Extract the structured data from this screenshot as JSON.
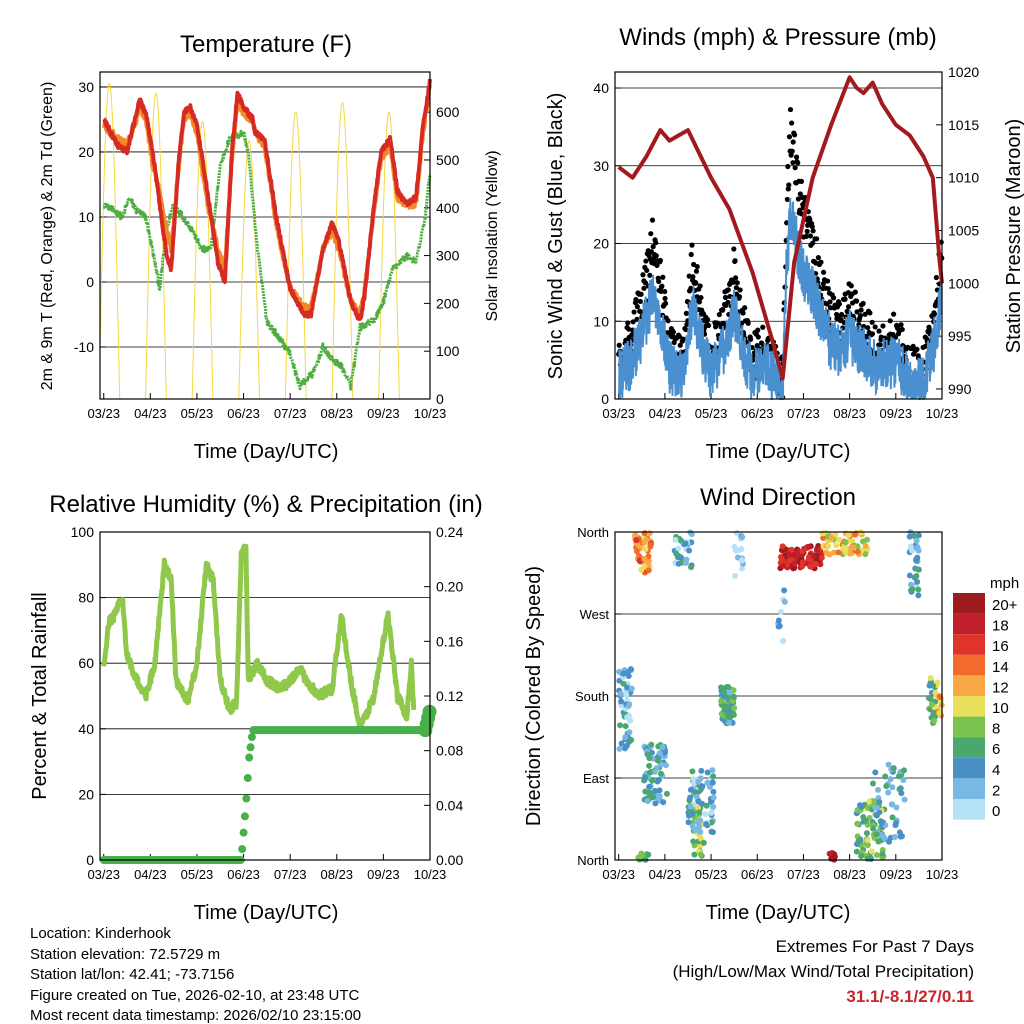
{
  "x_ticks": [
    "03/23",
    "04/23",
    "05/23",
    "06/23",
    "07/23",
    "08/23",
    "09/23",
    "10/23"
  ],
  "info": {
    "location": "Location: Kinderhook",
    "elevation": "Station elevation: 72.5729 m",
    "latlon": "Station lat/lon: 42.41; -73.7156",
    "created": "Figure created on Tue, 2026-02-10, at 23:48 UTC",
    "recent": "Most recent data timestamp: 2026/02/10 23:15:00"
  },
  "extremes": {
    "title": "Extremes For Past 7 Days",
    "subtitle": "(High/Low/Max Wind/Total Precipitation)",
    "values": "31.1/-8.1/27/0.11",
    "color": "#c8262c"
  },
  "chart_data": [
    {
      "type": "line",
      "title": "Temperature (F)",
      "xlabel": "Time (Day/UTC)",
      "ylabel": "2m & 9m T (Red, Orange) & 2m Td (Green)",
      "y2label": "Solar Insolation (Yellow)",
      "xlim": [
        -0.08,
        7.0
      ],
      "ylim": [
        -18,
        32.3
      ],
      "y2lim": [
        0,
        684
      ],
      "yticks": [
        "-10",
        "0",
        "10",
        "20",
        "30"
      ],
      "y2ticks": [
        "0",
        "100",
        "200",
        "300",
        "400",
        "500",
        "600"
      ],
      "series": [
        {
          "name": "2m T",
          "color": "#d62a24",
          "x": [
            0,
            0.3,
            0.5,
            0.7,
            0.77,
            0.9,
            1.05,
            1.2,
            1.35,
            1.45,
            1.6,
            1.72,
            1.85,
            2.0,
            2.2,
            2.45,
            2.6,
            2.75,
            2.87,
            3.0,
            3.2,
            3.25,
            3.45,
            3.7,
            4.0,
            4.3,
            4.45,
            4.7,
            4.9,
            5.05,
            5.3,
            5.5,
            5.6,
            5.8,
            5.95,
            6.15,
            6.3,
            6.5,
            6.7,
            6.85,
            7.0
          ],
          "y": [
            25,
            21,
            20,
            26,
            28,
            26,
            20,
            12,
            4,
            2,
            18,
            26,
            27,
            24,
            15,
            3,
            0,
            20,
            29,
            27,
            25,
            23,
            22,
            10,
            -1,
            -5,
            -5,
            5,
            9,
            6,
            -3,
            -6,
            -2,
            12,
            20,
            22,
            14,
            12,
            13,
            24,
            31
          ]
        },
        {
          "name": "9m T",
          "color": "#f28a2a",
          "x": [
            0,
            0.3,
            0.5,
            0.7,
            0.77,
            0.9,
            1.05,
            1.2,
            1.35,
            1.45,
            1.6,
            1.72,
            1.85,
            2.0,
            2.2,
            2.45,
            2.6,
            2.75,
            2.87,
            3.0,
            3.2,
            3.25,
            3.45,
            3.7,
            4.0,
            4.3,
            4.45,
            4.7,
            4.9,
            5.05,
            5.3,
            5.5,
            5.6,
            5.8,
            5.95,
            6.15,
            6.3,
            6.5,
            6.7,
            6.85,
            7.0
          ],
          "y": [
            24,
            22,
            21,
            25,
            27,
            25,
            18,
            14,
            8,
            5,
            17,
            25,
            26,
            23,
            13,
            5,
            2,
            19,
            28,
            26,
            25,
            23,
            21,
            9,
            -1,
            -4,
            -4,
            5,
            8,
            5,
            -3,
            -5,
            -1,
            11,
            19,
            21,
            13,
            12,
            12,
            23,
            30
          ]
        },
        {
          "name": "2m Td",
          "color": "#4cae3e",
          "x": [
            0,
            0.4,
            0.55,
            0.7,
            0.9,
            1.1,
            1.2,
            1.35,
            1.5,
            1.7,
            1.9,
            2.1,
            2.3,
            2.5,
            2.7,
            3.0,
            3.1,
            3.3,
            3.5,
            3.8,
            4.0,
            4.2,
            4.5,
            4.7,
            4.9,
            5.1,
            5.3,
            5.5,
            5.8,
            6.0,
            6.2,
            6.5,
            6.7,
            6.9,
            7.0
          ],
          "y": [
            12,
            10,
            13,
            11,
            10,
            3,
            -1,
            8,
            12,
            10,
            8,
            5,
            5,
            18,
            22,
            23,
            20,
            5,
            -6,
            -9,
            -11,
            -16,
            -14,
            -10,
            -12,
            -13,
            -16,
            -7,
            -6,
            -3,
            2,
            4,
            3,
            10,
            17
          ]
        },
        {
          "name": "Solar Insolation",
          "color": "#f6d842",
          "axis": "right",
          "peaks_day": [
            0.12,
            1.12,
            2.12,
            3.12,
            4.12,
            5.12,
            6.12
          ],
          "peaks": [
            660,
            640,
            580,
            540,
            600,
            620,
            600
          ]
        }
      ]
    },
    {
      "type": "scatter",
      "title": "Winds (mph) & Pressure (mb)",
      "xlabel": "Time (Day/UTC)",
      "ylabel": "Sonic Wind & Gust (Blue, Black)",
      "y2label": "Station Pressure (Maroon)",
      "xlim": [
        -0.08,
        7.0
      ],
      "ylim": [
        0,
        42.06
      ],
      "y2lim": [
        989.05,
        1020
      ],
      "yticks": [
        "0",
        "10",
        "20",
        "30",
        "40"
      ],
      "y2ticks": [
        "990",
        "995",
        "1000",
        "1005",
        "1010",
        "1015",
        "1020"
      ],
      "series": [
        {
          "name": "Sonic Wind",
          "color": "#4a90d0",
          "x": [
            0,
            0.3,
            0.6,
            0.75,
            0.9,
            1.1,
            1.4,
            1.6,
            1.75,
            2.0,
            2.3,
            2.5,
            2.7,
            2.9,
            3.2,
            3.4,
            3.55,
            3.62,
            3.72,
            3.85,
            4.0,
            4.2,
            4.4,
            4.6,
            4.8,
            5.0,
            5.3,
            5.6,
            6.0,
            6.3,
            6.6,
            6.8,
            7.0
          ],
          "y": [
            3,
            5,
            10,
            14,
            10,
            4,
            3,
            12,
            8,
            3,
            7,
            11,
            6,
            3,
            4,
            2,
            1,
            15,
            24,
            20,
            16,
            14,
            10,
            7,
            6,
            8,
            6,
            4,
            5,
            2,
            2,
            6,
            13
          ]
        },
        {
          "name": "Gust",
          "color": "#000000",
          "gust_factor": 1.4
        },
        {
          "name": "Station Pressure",
          "color": "#a31a1e",
          "axis": "right",
          "x": [
            0,
            0.3,
            0.6,
            0.9,
            1.1,
            1.3,
            1.5,
            2.0,
            2.4,
            2.9,
            3.3,
            3.55,
            3.8,
            4.2,
            4.6,
            5.0,
            5.15,
            5.3,
            5.5,
            5.7,
            6.0,
            6.3,
            6.6,
            6.8,
            6.95,
            7.0
          ],
          "y": [
            1011,
            1010,
            1012,
            1014.5,
            1013.5,
            1014,
            1014.5,
            1010,
            1007,
            1001,
            995,
            991,
            1002,
            1010,
            1015,
            1019.5,
            1018.5,
            1018,
            1019,
            1017,
            1015,
            1014,
            1012,
            1010,
            1002,
            1000
          ]
        }
      ]
    },
    {
      "type": "line",
      "title": "Relative Humidity (%) & Precipitation (in)",
      "xlabel": "Time (Day/UTC)",
      "ylabel": "Percent & Total Rainfall",
      "xlim": [
        -0.08,
        7.0
      ],
      "ylim": [
        0,
        100
      ],
      "y2lim": [
        0,
        0.24
      ],
      "yticks": [
        "0",
        "20",
        "40",
        "60",
        "80",
        "100"
      ],
      "y2ticks": [
        "0.00",
        "0.04",
        "0.08",
        "0.12",
        "0.16",
        "0.20",
        "0.24"
      ],
      "series": [
        {
          "name": "Relative Humidity",
          "color": "#8fc84a",
          "x": [
            0,
            0.1,
            0.25,
            0.4,
            0.5,
            0.7,
            0.9,
            1.1,
            1.3,
            1.45,
            1.55,
            1.8,
            2.0,
            2.2,
            2.35,
            2.5,
            2.7,
            2.85,
            2.95,
            3.05,
            3.1,
            3.3,
            3.5,
            3.8,
            4.2,
            4.6,
            4.9,
            5.1,
            5.3,
            5.5,
            5.8,
            6.1,
            6.3,
            6.5,
            6.6,
            6.65
          ],
          "y": [
            58,
            72,
            75,
            80,
            62,
            55,
            50,
            60,
            90,
            85,
            55,
            48,
            60,
            90,
            85,
            55,
            46,
            48,
            93,
            95,
            55,
            60,
            55,
            52,
            58,
            50,
            52,
            75,
            55,
            40,
            50,
            75,
            50,
            44,
            60,
            45
          ]
        },
        {
          "name": "Total Rainfall",
          "color": "#47b04a",
          "axis": "right",
          "x": [
            0,
            2.95,
            3.05,
            3.12,
            3.2,
            6.9,
            7.0
          ],
          "y": [
            0,
            0,
            0.04,
            0.075,
            0.095,
            0.095,
            0.11
          ]
        }
      ]
    },
    {
      "type": "scatter",
      "title": "Wind Direction",
      "xlabel": "Time (Day/UTC)",
      "ylabel": "Direction (Colored By Speed)",
      "xlim": [
        -0.08,
        7.0
      ],
      "ylim": [
        0,
        360
      ],
      "yticks": [
        "North",
        "East",
        "South",
        "West",
        "North"
      ],
      "legend": {
        "title": "mph",
        "placement": "right",
        "labels": [
          "20+",
          "18",
          "16",
          "14",
          "12",
          "10",
          "8",
          "6",
          "4",
          "2",
          "0"
        ],
        "colors": [
          "#9b1b1e",
          "#c0202a",
          "#e0332b",
          "#f26a2e",
          "#f8a945",
          "#e8e05a",
          "#7cc24e",
          "#4aa86e",
          "#4a8fc6",
          "#7ab8e4",
          "#b6e2f6"
        ]
      },
      "clusters": [
        {
          "d": [
            0.0,
            0.3
          ],
          "dir": [
            120,
            210
          ],
          "speed": 3,
          "n": 60
        },
        {
          "d": [
            0.35,
            0.7
          ],
          "dir": [
            315,
            360
          ],
          "speed": 13,
          "n": 50
        },
        {
          "d": [
            0.4,
            0.65
          ],
          "dir": [
            0,
            8
          ],
          "speed": 8,
          "n": 10
        },
        {
          "d": [
            0.55,
            1.05
          ],
          "dir": [
            60,
            130
          ],
          "speed": 4,
          "n": 70
        },
        {
          "d": [
            1.2,
            1.6
          ],
          "dir": [
            320,
            360
          ],
          "speed": 3,
          "n": 30
        },
        {
          "d": [
            1.6,
            1.85
          ],
          "dir": [
            0,
            90
          ],
          "speed": 8,
          "n": 40
        },
        {
          "d": [
            1.5,
            2.1
          ],
          "dir": [
            30,
            100
          ],
          "speed": 3,
          "n": 60
        },
        {
          "d": [
            2.2,
            2.5
          ],
          "dir": [
            150,
            190
          ],
          "speed": 5,
          "n": 60
        },
        {
          "d": [
            2.5,
            2.7
          ],
          "dir": [
            310,
            360
          ],
          "speed": 2,
          "n": 15
        },
        {
          "d": [
            3.45,
            3.6
          ],
          "dir": [
            240,
            300
          ],
          "speed": 2,
          "n": 10
        },
        {
          "d": [
            3.5,
            4.4
          ],
          "dir": [
            320,
            345
          ],
          "speed": 18,
          "n": 110
        },
        {
          "d": [
            4.4,
            5.4
          ],
          "dir": [
            335,
            360
          ],
          "speed": 11,
          "n": 70
        },
        {
          "d": [
            4.55,
            4.7
          ],
          "dir": [
            0,
            8
          ],
          "speed": 20,
          "n": 6
        },
        {
          "d": [
            5.15,
            5.75
          ],
          "dir": [
            0,
            65
          ],
          "speed": 7,
          "n": 70
        },
        {
          "d": [
            5.5,
            6.25
          ],
          "dir": [
            20,
            110
          ],
          "speed": 4,
          "n": 50
        },
        {
          "d": [
            6.3,
            6.5
          ],
          "dir": [
            290,
            360
          ],
          "speed": 3,
          "n": 35
        },
        {
          "d": [
            6.7,
            6.9
          ],
          "dir": [
            150,
            200
          ],
          "speed": 7,
          "n": 25
        },
        {
          "d": [
            6.9,
            7.0
          ],
          "dir": [
            155,
            190
          ],
          "speed": 12,
          "n": 10
        }
      ]
    }
  ]
}
